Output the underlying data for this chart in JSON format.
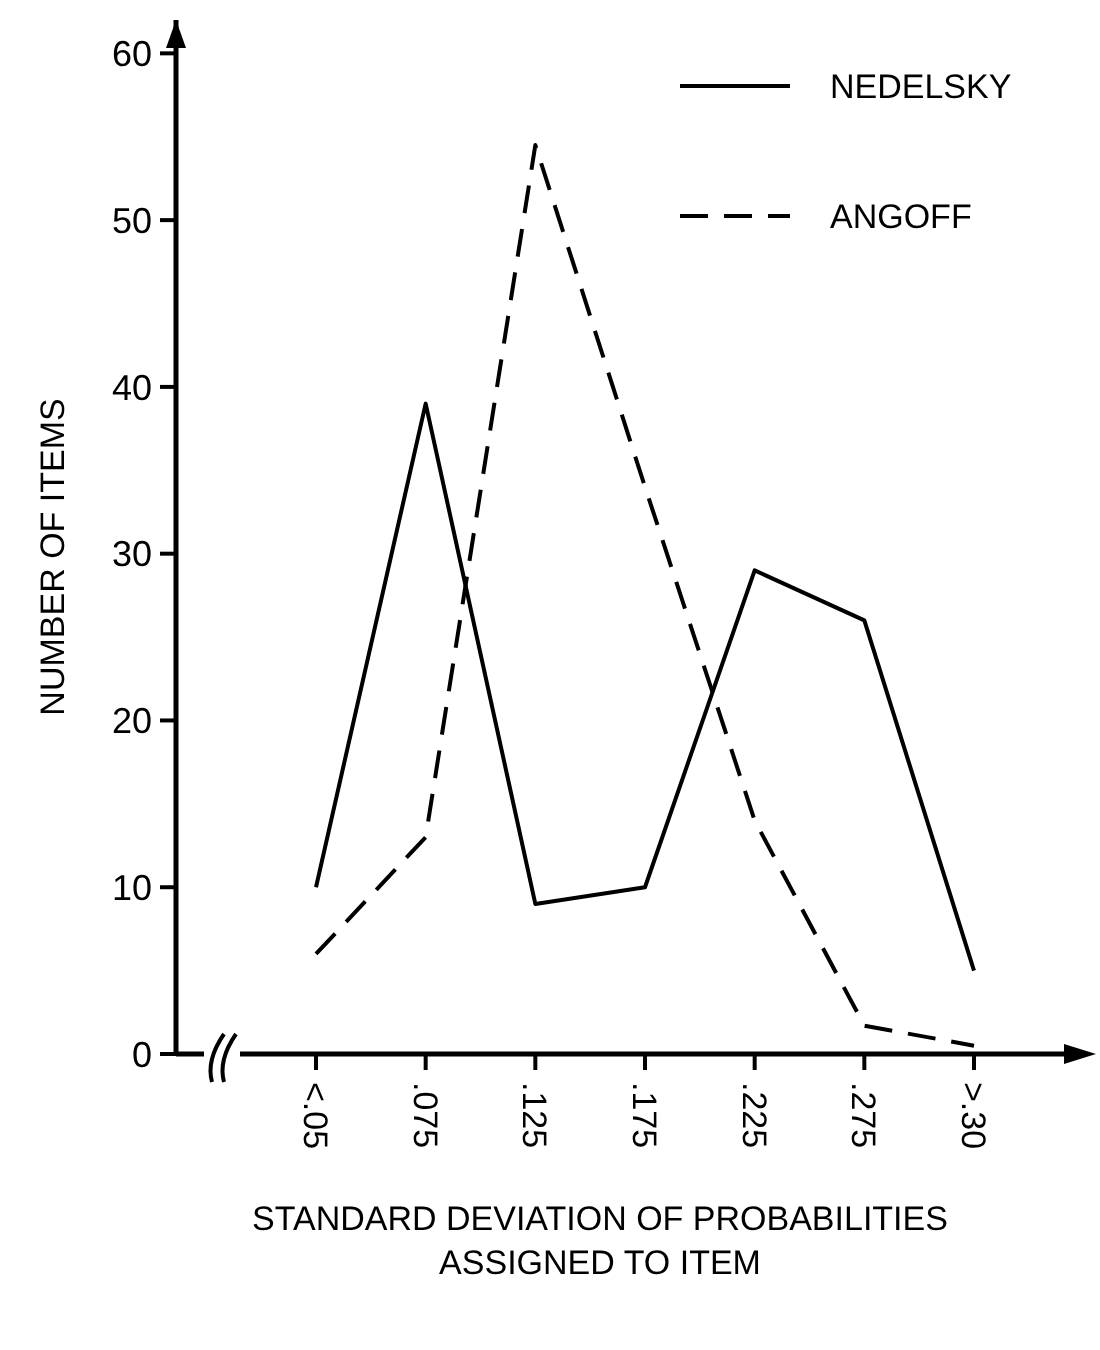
{
  "chart_data": {
    "type": "line",
    "xlabel": "STANDARD DEVIATION OF PROBABILITIES\nASSIGNED TO ITEM",
    "ylabel": "NUMBER OF ITEMS",
    "categories": [
      "<.05",
      ".075",
      ".125",
      ".175",
      ".225",
      ".275",
      ">.30"
    ],
    "series": [
      {
        "name": "NEDELSKY",
        "color": "#000000",
        "line_style": "solid",
        "values": [
          10,
          39,
          9,
          10,
          29,
          26,
          5
        ]
      },
      {
        "name": "ANGOFF",
        "color": "#000000",
        "line_style": "dashed",
        "values": [
          6,
          13,
          54.5,
          34,
          14,
          1.7,
          0.5
        ]
      }
    ],
    "ylim": [
      0,
      62
    ],
    "yticks": [
      0,
      10,
      20,
      30,
      40,
      50,
      60
    ],
    "grid": false,
    "legend": "top right",
    "marker": "none"
  }
}
